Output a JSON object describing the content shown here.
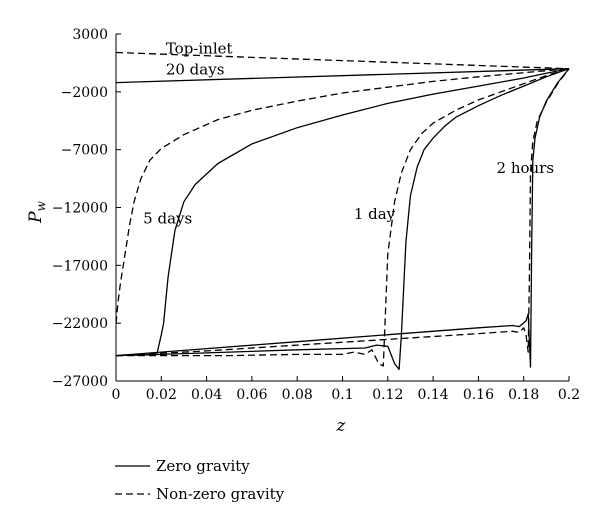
{
  "chart_data": {
    "type": "line",
    "title": "",
    "xlabel": "z",
    "ylabel": "P",
    "ylabel_sub": "w",
    "xlim": [
      0,
      0.2
    ],
    "ylim": [
      -27000,
      3000
    ],
    "xticks": [
      0,
      0.02,
      0.04,
      0.06,
      0.08,
      0.1,
      0.12,
      0.14,
      0.16,
      0.18,
      0.2
    ],
    "xtick_labels": [
      "0",
      "0.02",
      "0.04",
      "0.06",
      "0.08",
      "0.1",
      "0.12",
      "0.14",
      "0.16",
      "0.18",
      "0.2"
    ],
    "yticks": [
      3000,
      -2000,
      -7000,
      -12000,
      -17000,
      -22000,
      -27000
    ],
    "ytick_labels": [
      "3000",
      "−2000",
      "−7000",
      "−12000",
      "−17000",
      "−22000",
      "−27000"
    ],
    "grid": false,
    "legend_position": "bottom-left",
    "legend": [
      {
        "label": "Zero gravity",
        "style": "solid"
      },
      {
        "label": "Non-zero gravity",
        "style": "dashed"
      }
    ],
    "annotations": [
      {
        "text": "Top-inlet",
        "x": 0.022,
        "y": 1300
      },
      {
        "text": "20 days",
        "x": 0.022,
        "y": -500
      },
      {
        "text": "5 days",
        "x": 0.012,
        "y": -13400
      },
      {
        "text": "1 day",
        "x": 0.105,
        "y": -13000
      },
      {
        "text": "2 hours",
        "x": 0.168,
        "y": -9000
      }
    ],
    "series": [
      {
        "style": "solid",
        "x": [
          0,
          0.2
        ],
        "y": [
          -1200,
          0
        ]
      },
      {
        "style": "dashed",
        "x": [
          0,
          0.2
        ],
        "y": [
          1400,
          0
        ]
      },
      {
        "style": "solid",
        "x": [
          0,
          0.01,
          0.018,
          0.02,
          0.021,
          0.023,
          0.026,
          0.03,
          0.035,
          0.045,
          0.06,
          0.08,
          0.1,
          0.12,
          0.14,
          0.16,
          0.18,
          0.19,
          0.2
        ],
        "y": [
          -24800,
          -24750,
          -24700,
          -23000,
          -22000,
          -18000,
          -14000,
          -11500,
          -10000,
          -8200,
          -6500,
          -5100,
          -4000,
          -3000,
          -2200,
          -1500,
          -800,
          -400,
          0
        ]
      },
      {
        "style": "dashed",
        "x": [
          0,
          0.001,
          0.002,
          0.004,
          0.006,
          0.008,
          0.011,
          0.015,
          0.02,
          0.03,
          0.045,
          0.06,
          0.08,
          0.1,
          0.12,
          0.14,
          0.16,
          0.18,
          0.2
        ],
        "y": [
          -22000,
          -20000,
          -18500,
          -16000,
          -13500,
          -11500,
          -9500,
          -7900,
          -6900,
          -5700,
          -4400,
          -3600,
          -2800,
          -2100,
          -1600,
          -1100,
          -700,
          -350,
          0
        ]
      },
      {
        "style": "solid",
        "x": [
          0,
          0.02,
          0.05,
          0.08,
          0.1,
          0.11,
          0.115,
          0.12,
          0.123,
          0.125,
          0.126,
          0.128,
          0.13,
          0.133,
          0.136,
          0.14,
          0.145,
          0.15,
          0.16,
          0.17,
          0.18,
          0.19,
          0.2
        ],
        "y": [
          -24800,
          -24700,
          -24500,
          -24300,
          -24200,
          -24150,
          -23900,
          -24000,
          -25500,
          -26000,
          -23000,
          -15000,
          -11000,
          -8500,
          -7000,
          -6000,
          -5000,
          -4200,
          -3200,
          -2300,
          -1500,
          -700,
          0
        ]
      },
      {
        "style": "dashed",
        "x": [
          0,
          0.02,
          0.05,
          0.08,
          0.1,
          0.105,
          0.11,
          0.113,
          0.116,
          0.118,
          0.12,
          0.123,
          0.126,
          0.13,
          0.135,
          0.14,
          0.15,
          0.16,
          0.17,
          0.18,
          0.19,
          0.2
        ],
        "y": [
          -24800,
          -24800,
          -24800,
          -24700,
          -24700,
          -24500,
          -24700,
          -24300,
          -25500,
          -25700,
          -16000,
          -11500,
          -9000,
          -7000,
          -5600,
          -4700,
          -3600,
          -2700,
          -2000,
          -1300,
          -600,
          0
        ]
      },
      {
        "style": "solid",
        "x": [
          0,
          0.04,
          0.08,
          0.12,
          0.16,
          0.175,
          0.178,
          0.181,
          0.182,
          0.183,
          0.1835,
          0.184,
          0.185,
          0.187,
          0.19,
          0.195,
          0.2
        ],
        "y": [
          -24800,
          -24200,
          -23600,
          -23000,
          -22400,
          -22200,
          -22300,
          -21800,
          -21200,
          -25800,
          -16000,
          -8000,
          -6000,
          -4200,
          -2800,
          -1200,
          0
        ]
      },
      {
        "style": "dashed",
        "x": [
          0,
          0.04,
          0.08,
          0.12,
          0.16,
          0.175,
          0.178,
          0.18,
          0.181,
          0.182,
          0.1825,
          0.183,
          0.184,
          0.186,
          0.19,
          0.195,
          0.2
        ],
        "y": [
          -24800,
          -24400,
          -23900,
          -23400,
          -22900,
          -22700,
          -22800,
          -22400,
          -23000,
          -24500,
          -18000,
          -9000,
          -6300,
          -4500,
          -2900,
          -1300,
          0
        ]
      }
    ]
  }
}
